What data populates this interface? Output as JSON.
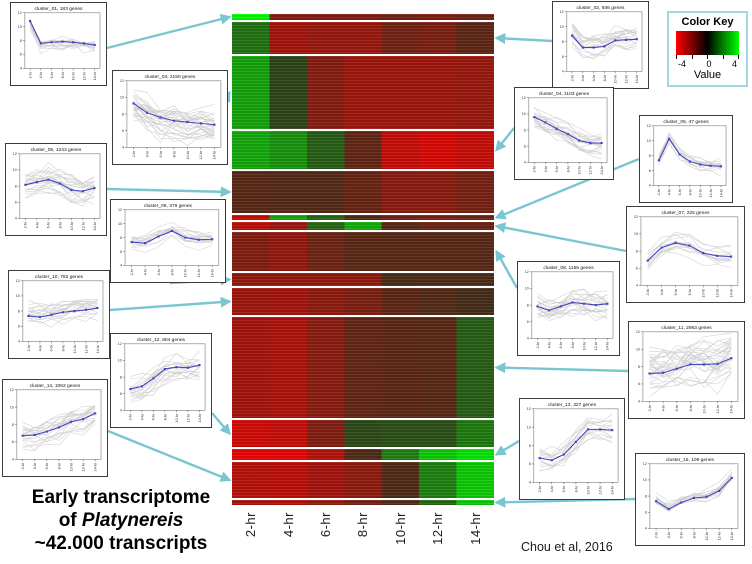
{
  "figure": {
    "title_line1": "Early transcriptome",
    "title_line2_prefix": "of",
    "title_line2_italic": "Platynereis",
    "title_line3": "~42.000 transcripts",
    "caption": "Chou et al, 2016"
  },
  "color_key": {
    "title": "Color Key",
    "tick_labels": [
      "-4",
      "0",
      "4"
    ],
    "axis_label": "Value",
    "min_color": "#ff0000",
    "mid_color": "#000000",
    "max_color": "#00ff00",
    "border_color": "#9fd8e3"
  },
  "mini_plot": {
    "y_tick_labels": [
      "12",
      "10",
      "8",
      "6",
      "4"
    ]
  },
  "accent": {
    "arrow_color": "#72c3cf",
    "mean_line_color": "#4444bd",
    "spaghetti_color": "#cdcdcd"
  },
  "chart_data": {
    "type": "heatmap",
    "title": "Early transcriptome of Platynereis ~42.000 transcripts",
    "x_labels": [
      "2-hr",
      "4-hr",
      "6-hr",
      "8-hr",
      "10-hr",
      "12-hr",
      "14-hr"
    ],
    "color_scale": {
      "min": -4,
      "mid": 0,
      "max": 4,
      "label": "Value"
    },
    "clusters": [
      {
        "id": "cluster_01",
        "label": "cluster_01, 183 genes",
        "genes": 183,
        "heat_values": [
          4,
          -1.6,
          -1.6,
          -1.5,
          -1.2,
          -1.5,
          -1.2
        ],
        "mean_profile": [
          0.85,
          0.45,
          0.47,
          0.48,
          0.47,
          0.45,
          0.42
        ]
      },
      {
        "id": "cluster_02",
        "label": "cluster_02, 936 genes",
        "genes": 936,
        "heat_values": [
          1.2,
          -2.2,
          -2,
          -2,
          -1.2,
          -1.4,
          -0.8
        ],
        "mean_profile": [
          0.6,
          0.4,
          0.4,
          0.42,
          0.52,
          0.53,
          0.54
        ]
      },
      {
        "id": "cluster_03",
        "label": "cluster_03, 2150 genes",
        "genes": 2150,
        "heat_values": [
          2.2,
          0.3,
          -1.6,
          -2.1,
          -2.1,
          -2.1,
          -2
        ],
        "mean_profile": [
          0.66,
          0.52,
          0.45,
          0.4,
          0.38,
          0.36,
          0.34
        ]
      },
      {
        "id": "cluster_04",
        "label": "cluster_04, 1103 genes",
        "genes": 1103,
        "heat_values": [
          2.3,
          1.9,
          0.8,
          -0.9,
          -2.9,
          -3.3,
          -2.9
        ],
        "mean_profile": [
          0.7,
          0.62,
          0.52,
          0.44,
          0.34,
          0.3,
          0.3
        ]
      },
      {
        "id": "cluster_05",
        "label": "cluster_05, 1243 genes",
        "genes": 1243,
        "heat_values": [
          -0.7,
          -0.6,
          -0.6,
          -1,
          -1.7,
          -1.7,
          -1.3
        ],
        "mean_profile": [
          0.52,
          0.56,
          0.6,
          0.54,
          0.44,
          0.42,
          0.47
        ]
      },
      {
        "id": "cluster_06",
        "label": "cluster_06, 47 genes",
        "genes": 47,
        "heat_values": [
          -3,
          2.3,
          1,
          -0.6,
          -1.1,
          -1.4,
          -1.1
        ],
        "mean_profile": [
          0.42,
          0.78,
          0.52,
          0.4,
          0.35,
          0.33,
          0.32
        ]
      },
      {
        "id": "cluster_07",
        "label": "cluster_07, 225 genes",
        "genes": 225,
        "heat_values": [
          -2.7,
          -2,
          1,
          2.4,
          -0.7,
          -1.1,
          -1.1
        ],
        "mean_profile": [
          0.36,
          0.55,
          0.62,
          0.58,
          0.47,
          0.43,
          0.42
        ]
      },
      {
        "id": "cluster_08",
        "label": "cluster_08, 1155 genes",
        "genes": 1155,
        "heat_values": [
          -1.5,
          -1.9,
          -1.1,
          -0.7,
          -0.7,
          -0.7,
          -0.7
        ],
        "mean_profile": [
          0.48,
          0.42,
          0.48,
          0.54,
          0.52,
          0.5,
          0.52
        ]
      },
      {
        "id": "cluster_09",
        "label": "cluster_09, 379 genes",
        "genes": 379,
        "heat_values": [
          -1.9,
          -1.9,
          -1.9,
          -1.8,
          -0.4,
          -0.5,
          -0.5
        ],
        "mean_profile": [
          0.42,
          0.4,
          0.52,
          0.62,
          0.5,
          0.46,
          0.47
        ]
      },
      {
        "id": "cluster_10",
        "label": "cluster_10, 782 genes",
        "genes": 782,
        "heat_values": [
          -2.1,
          -2.2,
          -1.8,
          -1.4,
          -0.8,
          -0.6,
          -0.3
        ],
        "mean_profile": [
          0.42,
          0.4,
          0.44,
          0.48,
          0.5,
          0.52,
          0.55
        ]
      },
      {
        "id": "cluster_11",
        "label": "cluster_11, 2963 genes",
        "genes": 2963,
        "heat_values": [
          -2.2,
          -2.4,
          -1.7,
          -0.9,
          -0.8,
          -0.7,
          0.8
        ],
        "mean_profile": [
          0.4,
          0.41,
          0.47,
          0.53,
          0.53,
          0.54,
          0.62
        ]
      },
      {
        "id": "cluster_12",
        "label": "cluster_12, 804 genes",
        "genes": 804,
        "heat_values": [
          -3.1,
          -2.9,
          -1.5,
          0.4,
          0.5,
          0.5,
          1.4
        ],
        "mean_profile": [
          0.32,
          0.36,
          0.48,
          0.62,
          0.65,
          0.64,
          0.68
        ]
      },
      {
        "id": "cluster_13",
        "label": "cluster_13, 327 genes",
        "genes": 327,
        "heat_values": [
          -3.6,
          -3.6,
          -2.5,
          -0.5,
          1.5,
          3,
          3.5
        ],
        "mean_profile": [
          0.33,
          0.3,
          0.38,
          0.55,
          0.72,
          0.72,
          0.71
        ]
      },
      {
        "id": "cluster_14",
        "label": "cluster_14, 1062 genes",
        "genes": 1062,
        "heat_values": [
          -2.6,
          -2.7,
          -2.2,
          -1.8,
          -0.5,
          1.5,
          3
        ],
        "mean_profile": [
          0.34,
          0.35,
          0.4,
          0.46,
          0.54,
          0.58,
          0.66
        ]
      },
      {
        "id": "cluster_15",
        "label": "cluster_15, 109 genes",
        "genes": 109,
        "heat_values": [
          -2.2,
          -2.4,
          -1.8,
          -1.2,
          -0.5,
          1,
          3
        ],
        "mean_profile": [
          0.42,
          0.3,
          0.4,
          0.47,
          0.49,
          0.58,
          0.78
        ]
      }
    ]
  }
}
